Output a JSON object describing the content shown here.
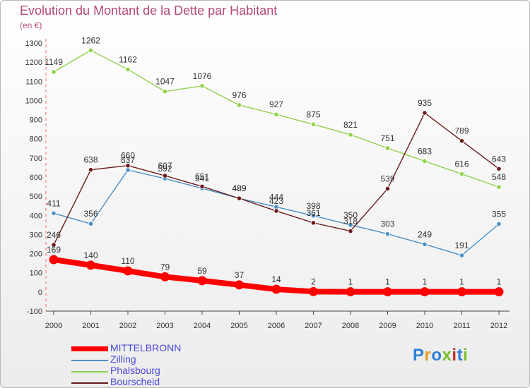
{
  "header": {
    "title": "Evolution du Montant de la Dette par Habitant",
    "unit": "(en €)"
  },
  "logo": {
    "text": "Proxiti",
    "colors": [
      "#2f7fd6",
      "#e89a1c",
      "#2f7fd6",
      "#7bbf2a",
      "#c8322b",
      "#2f7fd6",
      "#7bbf2a"
    ]
  },
  "chart_data": {
    "type": "line",
    "x": [
      "2000",
      "2001",
      "2002",
      "2003",
      "2004",
      "2005",
      "2006",
      "2007",
      "2008",
      "2009",
      "2010",
      "2011",
      "2012"
    ],
    "ylim": [
      -100,
      1300
    ],
    "yticks": [
      -100,
      0,
      100,
      200,
      300,
      400,
      500,
      600,
      700,
      800,
      900,
      1000,
      1100,
      1200,
      1300
    ],
    "grid": false,
    "legend": "bottom-left",
    "series": [
      {
        "name": "MITTELBRONN",
        "color": "#ff0000",
        "values": [
          169,
          140,
          110,
          79,
          59,
          37,
          14,
          2,
          1,
          1,
          1,
          1,
          1
        ]
      },
      {
        "name": "Zilling",
        "color": "#4a8fc6",
        "values": [
          411,
          356,
          637,
          592,
          541,
          489,
          444,
          398,
          350,
          303,
          249,
          191,
          355
        ]
      },
      {
        "name": "Phalsbourg",
        "color": "#8fd24a",
        "values": [
          1149,
          1262,
          1162,
          1047,
          1076,
          976,
          927,
          875,
          821,
          751,
          683,
          616,
          548
        ]
      },
      {
        "name": "Bourscheid",
        "color": "#6b1a1a",
        "values": [
          246,
          638,
          660,
          607,
          551,
          489,
          423,
          361,
          318,
          539,
          935,
          789,
          643
        ]
      }
    ]
  }
}
